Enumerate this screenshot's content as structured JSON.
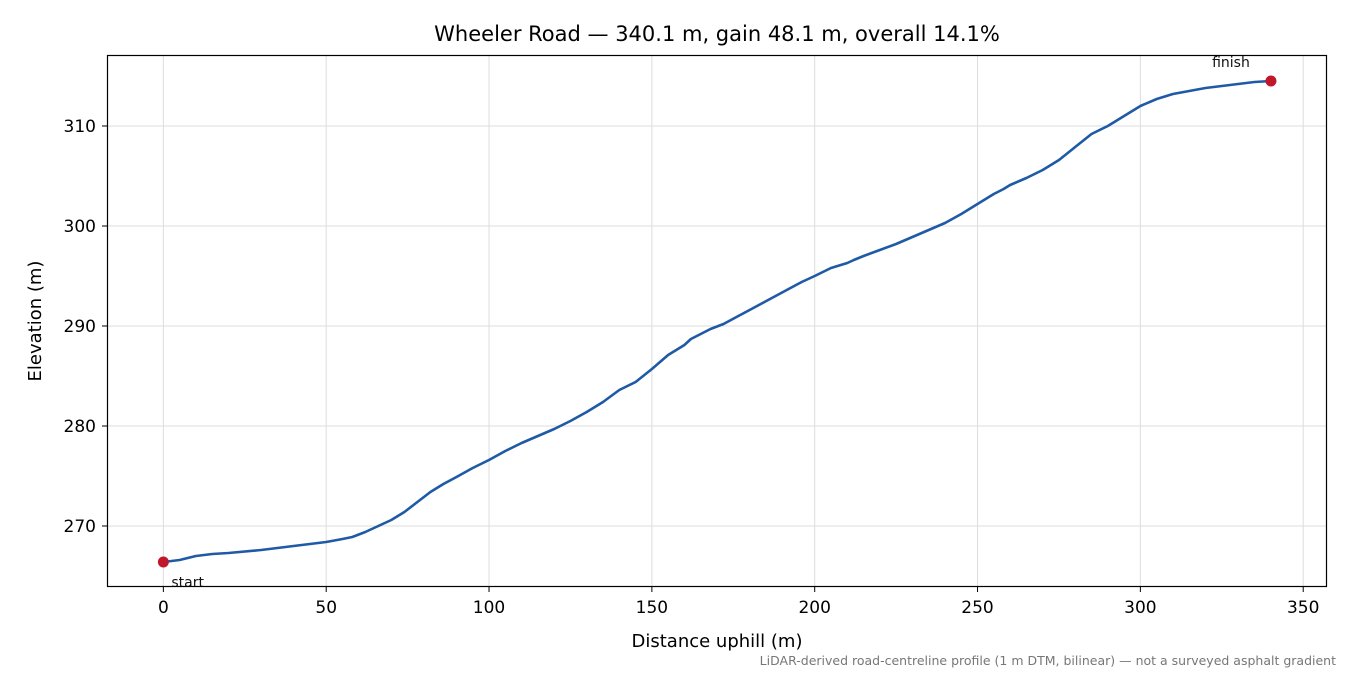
{
  "chart_data": {
    "type": "line",
    "title": "Wheeler Road — 340.1 m, gain 48.1 m, overall 14.1%",
    "xlabel": "Distance uphill (m)",
    "ylabel": "Elevation (m)",
    "xlim": [
      -17,
      357
    ],
    "ylim": [
      264,
      317
    ],
    "xticks": [
      "0",
      "50",
      "100",
      "150",
      "200",
      "250",
      "300",
      "350"
    ],
    "yticks": [
      "270",
      "280",
      "290",
      "300",
      "310"
    ],
    "grid": true,
    "series": [
      {
        "color": "#1f5aa6",
        "x": [
          0,
          5,
          10,
          15,
          20,
          30,
          40,
          50,
          55,
          58,
          62,
          66,
          70,
          74,
          78,
          82,
          86,
          90,
          95,
          100,
          105,
          110,
          115,
          120,
          125,
          130,
          135,
          140,
          145,
          150,
          155,
          160,
          162,
          165,
          168,
          172,
          176,
          180,
          184,
          188,
          192,
          196,
          200,
          205,
          210,
          212,
          215,
          220,
          225,
          230,
          235,
          240,
          245,
          250,
          255,
          258,
          260,
          265,
          270,
          275,
          280,
          285,
          290,
          295,
          300,
          305,
          310,
          315,
          320,
          325,
          330,
          335,
          340.1
        ],
        "y": [
          266.4,
          266.6,
          267.0,
          267.2,
          267.3,
          267.6,
          268.0,
          268.4,
          268.7,
          268.9,
          269.4,
          270.0,
          270.6,
          271.4,
          272.4,
          273.4,
          274.2,
          274.9,
          275.8,
          276.6,
          277.5,
          278.3,
          279.0,
          279.7,
          280.5,
          281.4,
          282.4,
          283.6,
          284.4,
          285.7,
          287.1,
          288.1,
          288.7,
          289.2,
          289.7,
          290.2,
          290.9,
          291.6,
          292.3,
          293.0,
          293.7,
          294.4,
          295.0,
          295.8,
          296.3,
          296.6,
          297.0,
          297.6,
          298.2,
          298.9,
          299.6,
          300.3,
          301.2,
          302.2,
          303.2,
          303.7,
          304.1,
          304.8,
          305.6,
          306.6,
          307.9,
          309.2,
          310.0,
          311.0,
          312.0,
          312.7,
          313.2,
          313.5,
          313.8,
          314.0,
          314.2,
          314.4,
          314.5
        ]
      }
    ],
    "markers": [
      {
        "x": 0,
        "y": 266.4,
        "label": "start",
        "color": "#c0182a"
      },
      {
        "x": 340.1,
        "y": 314.5,
        "label": "finish",
        "color": "#c0182a"
      }
    ],
    "footnote": "LiDAR-derived road-centreline profile (1 m DTM, bilinear) — not a surveyed asphalt gradient"
  }
}
